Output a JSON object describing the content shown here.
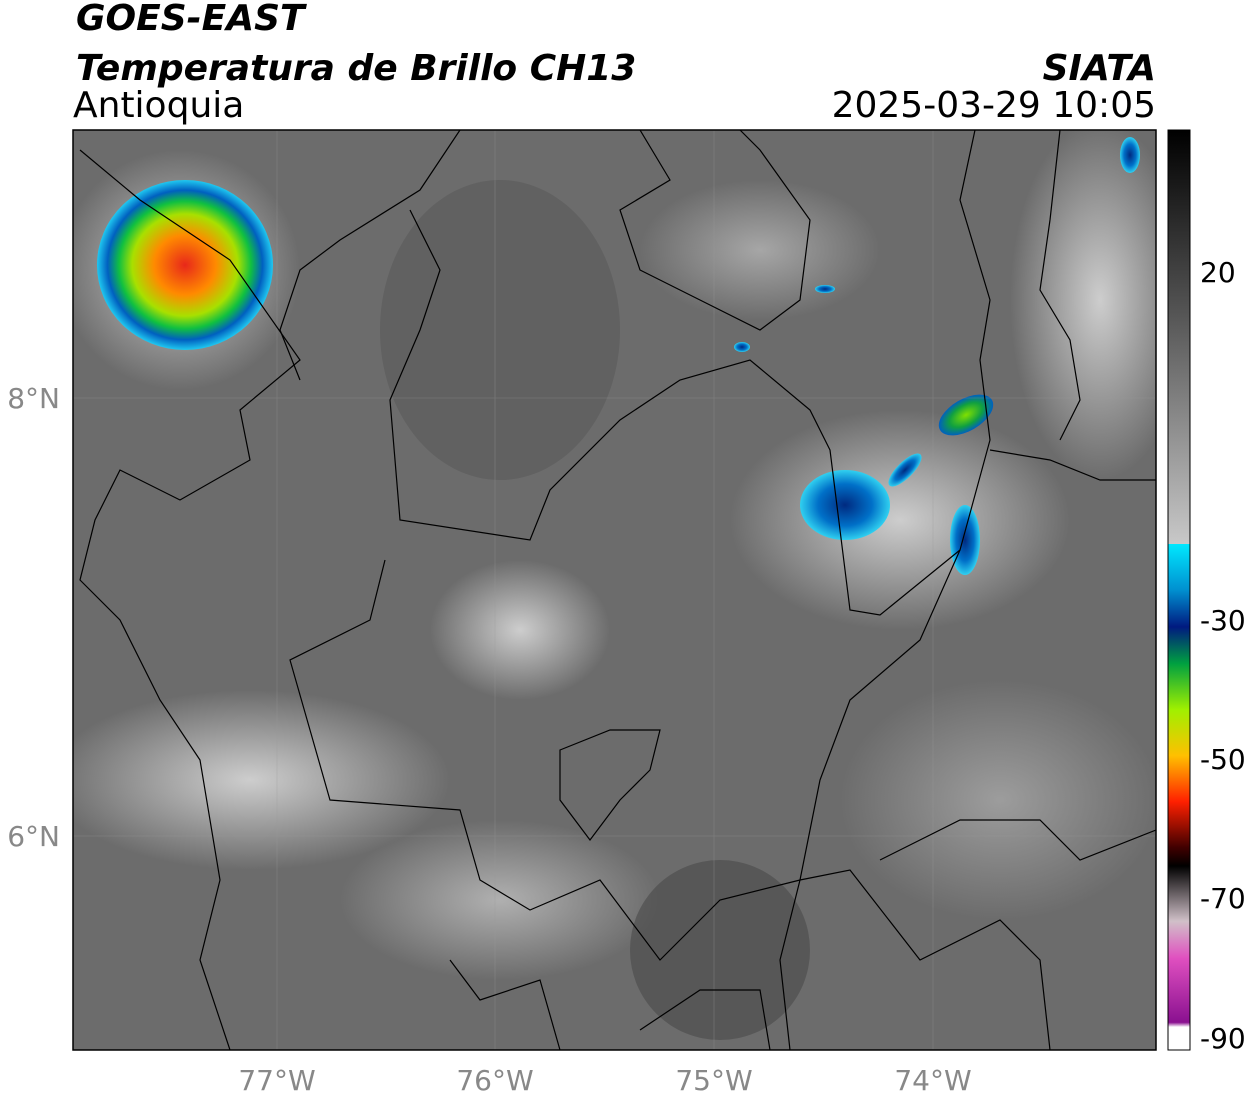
{
  "header": {
    "satellite": "GOES-EAST",
    "product": "Temperatura de Brillo CH13",
    "region": "Antioquia",
    "source": "SIATA",
    "datetime": "2025-03-29 10:05"
  },
  "map": {
    "lon_labels": [
      "77°W",
      "76°W",
      "75°W",
      "74°W"
    ],
    "lat_labels": [
      "8°N",
      "6°N"
    ]
  },
  "colorbar": {
    "labels": [
      "20",
      "-30",
      "-50",
      "-70",
      "-90"
    ]
  }
}
